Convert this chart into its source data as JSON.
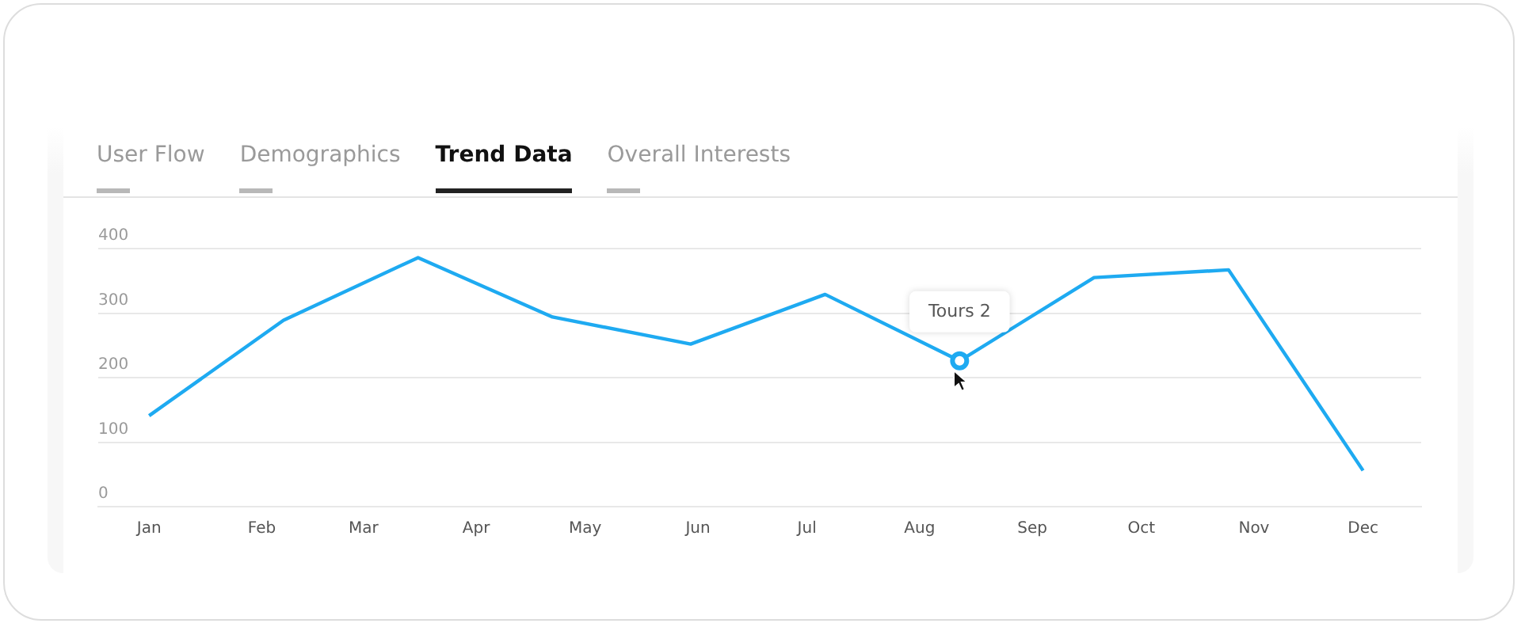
{
  "chart_data": {
    "type": "line",
    "title": "Trend Data",
    "x": [
      "--01-15",
      "--02-21",
      "--03-30",
      "--05-06",
      "--06-13",
      "--07-20",
      "--08-26",
      "--10-02",
      "--11-08",
      "--12-15"
    ],
    "series": [
      {
        "color": "#1eaaf1",
        "values": [
          141,
          289,
          386,
          294,
          252,
          329,
          226,
          355,
          367,
          56
        ]
      }
    ],
    "xlim": [
      "--01-01",
      "--12-31"
    ],
    "xticks": [
      {
        "value": "--01-15",
        "label": "Jan"
      },
      {
        "value": "--02-15",
        "label": "Feb"
      },
      {
        "value": "--03-15",
        "label": "Mar"
      },
      {
        "value": "--04-15",
        "label": "Apr"
      },
      {
        "value": "--05-15",
        "label": "May"
      },
      {
        "value": "--06-15",
        "label": "Jun"
      },
      {
        "value": "--07-15",
        "label": "Jul"
      },
      {
        "value": "--08-15",
        "label": "Aug"
      },
      {
        "value": "--09-15",
        "label": "Sep"
      },
      {
        "value": "--10-15",
        "label": "Oct"
      },
      {
        "value": "--11-15",
        "label": "Nov"
      },
      {
        "value": "--12-15",
        "label": "Dec"
      }
    ],
    "ylim": [
      0,
      400
    ],
    "yticks": [
      0,
      100,
      200,
      300,
      400
    ],
    "grid": "y",
    "legend": false,
    "marker": "none",
    "line_style": "solid",
    "annotations": [
      "User Flow",
      "Demographics",
      "Overall Interests",
      {
        "text": "Tours 2",
        "x": "--08-26",
        "y": 226
      }
    ]
  }
}
